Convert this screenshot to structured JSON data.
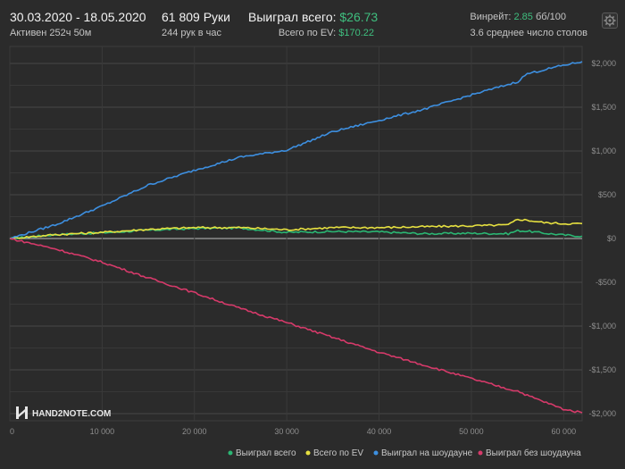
{
  "header": {
    "date_range": "30.03.2020 - 18.05.2020",
    "active_time": "Активен 252ч 50м",
    "hands": "61 809 Руки",
    "hands_per_hour": "244 рук в час",
    "won_total_label": "Выиграл всего:",
    "won_total_value": "$26.73",
    "ev_label": "Всего по EV:",
    "ev_value": "$170.22",
    "winrate_label": "Винрейт:",
    "winrate_value": "2.85",
    "winrate_unit": "бб/100",
    "tables": "3.6 среднее число столов"
  },
  "logo": {
    "text": "HAND2NOTE.COM"
  },
  "settings": {
    "icon": "gear-icon"
  },
  "chart_data": {
    "type": "line",
    "xlim": [
      0,
      62000
    ],
    "ylim": [
      -2000,
      2000
    ],
    "x_ticks": [
      0,
      10000,
      20000,
      30000,
      40000,
      50000,
      60000
    ],
    "x_tick_labels": [
      "0",
      "10 000",
      "20 000",
      "30 000",
      "40 000",
      "50 000",
      "60 000"
    ],
    "y_ticks": [
      2000,
      1500,
      1000,
      500,
      0,
      -500,
      -1000,
      -1500,
      -2000
    ],
    "y_tick_labels": [
      "$2,000",
      "$1,500",
      "$1,000",
      "$500",
      "$0",
      "-$500",
      "-$1,000",
      "-$1,500",
      "-$2,000"
    ],
    "grid": true,
    "legend_position": "bottom-right",
    "x": [
      0,
      5000,
      10000,
      15000,
      20000,
      25000,
      30000,
      35000,
      40000,
      45000,
      50000,
      54000,
      55000,
      56000,
      58000,
      60000,
      62000
    ],
    "series": [
      {
        "name": "Выиграл всего",
        "color": "#2bb673",
        "values": [
          0,
          45,
          65,
          95,
          115,
          120,
          70,
          80,
          75,
          55,
          60,
          55,
          90,
          85,
          60,
          40,
          27
        ]
      },
      {
        "name": "Всего по EV",
        "color": "#e6e040",
        "values": [
          0,
          45,
          70,
          105,
          125,
          125,
          100,
          125,
          125,
          135,
          145,
          155,
          220,
          210,
          180,
          170,
          170
        ]
      },
      {
        "name": "Выиграл на шоудауне",
        "color": "#3d8fe0",
        "values": [
          0,
          160,
          370,
          610,
          780,
          930,
          1010,
          1220,
          1350,
          1480,
          1640,
          1760,
          1790,
          1880,
          1930,
          1980,
          2020
        ]
      },
      {
        "name": "Выиграл без шоудауна",
        "color": "#d63a6a",
        "values": [
          0,
          -120,
          -270,
          -450,
          -620,
          -800,
          -960,
          -1130,
          -1300,
          -1450,
          -1600,
          -1720,
          -1740,
          -1790,
          -1870,
          -1950,
          -1990
        ]
      }
    ]
  }
}
